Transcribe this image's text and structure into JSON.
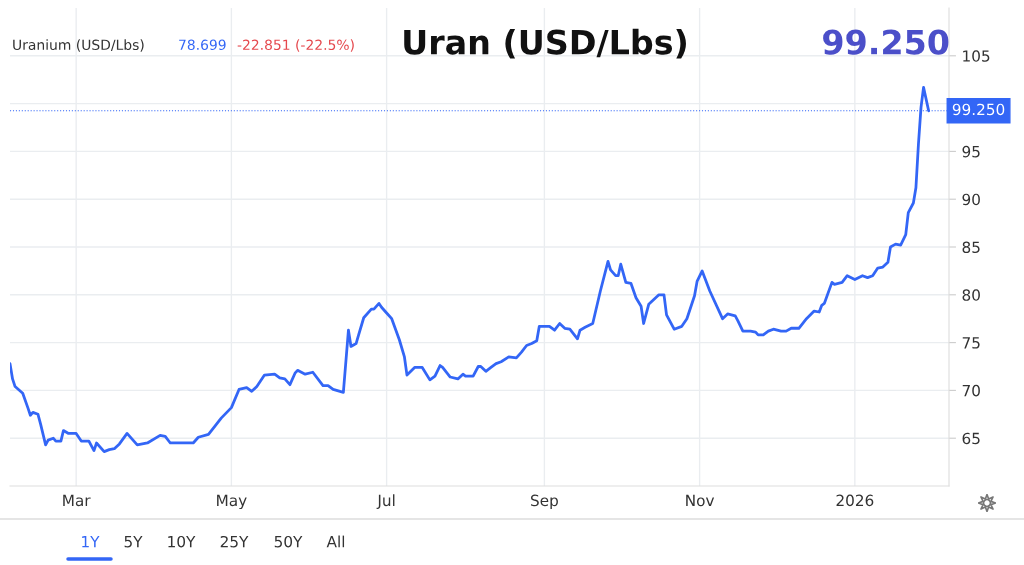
{
  "chart_data": {
    "type": "line",
    "title": "Uran (USD/Lbs)",
    "annotations": [
      "Uranium (USD/Lbs)",
      "78.699",
      "-22.851 (-22.5%)",
      "99.250",
      "1Y",
      "5Y",
      "10Y",
      "25Y",
      "50Y",
      "All"
    ],
    "x": [
      "2025-02-03",
      "2025-02-04",
      "2025-02-05",
      "2025-02-08",
      "2025-02-10",
      "2025-02-11",
      "2025-02-12",
      "2025-02-14",
      "2025-02-15",
      "2025-02-17",
      "2025-02-18",
      "2025-02-20",
      "2025-02-21",
      "2025-02-23",
      "2025-02-24",
      "2025-02-26",
      "2025-03-01",
      "2025-03-03",
      "2025-03-06",
      "2025-03-08",
      "2025-03-09",
      "2025-03-12",
      "2025-03-14",
      "2025-03-16",
      "2025-03-18",
      "2025-03-21",
      "2025-03-25",
      "2025-03-29",
      "2025-04-03",
      "2025-04-05",
      "2025-04-07",
      "2025-04-16",
      "2025-04-18",
      "2025-04-22",
      "2025-04-27",
      "2025-05-01",
      "2025-05-04",
      "2025-05-07",
      "2025-05-09",
      "2025-05-11",
      "2025-05-14",
      "2025-05-18",
      "2025-05-20",
      "2025-05-22",
      "2025-05-24",
      "2025-05-26",
      "2025-05-27",
      "2025-05-30",
      "2025-06-02",
      "2025-06-06",
      "2025-06-08",
      "2025-06-10",
      "2025-06-14",
      "2025-06-16",
      "2025-06-17",
      "2025-06-19",
      "2025-06-20",
      "2025-06-22",
      "2025-06-25",
      "2025-06-26",
      "2025-06-28",
      "2025-06-29",
      "2025-07-01",
      "2025-07-03",
      "2025-07-06",
      "2025-07-08",
      "2025-07-09",
      "2025-07-12",
      "2025-07-15",
      "2025-07-18",
      "2025-07-20",
      "2025-07-22",
      "2025-07-23",
      "2025-07-26",
      "2025-07-29",
      "2025-07-31",
      "2025-08-01",
      "2025-08-04",
      "2025-08-06",
      "2025-08-07",
      "2025-08-09",
      "2025-08-11",
      "2025-08-13",
      "2025-08-15",
      "2025-08-18",
      "2025-08-21",
      "2025-08-23",
      "2025-08-25",
      "2025-08-27",
      "2025-08-29",
      "2025-08-30",
      "2025-09-03",
      "2025-09-05",
      "2025-09-07",
      "2025-09-09",
      "2025-09-11",
      "2025-09-14",
      "2025-09-15",
      "2025-09-17",
      "2025-09-20",
      "2025-09-23",
      "2025-09-26",
      "2025-09-27",
      "2025-09-29",
      "2025-09-30",
      "2025-10-01",
      "2025-10-03",
      "2025-10-05",
      "2025-10-07",
      "2025-10-09",
      "2025-10-10",
      "2025-10-12",
      "2025-10-14",
      "2025-10-16",
      "2025-10-18",
      "2025-10-19",
      "2025-10-22",
      "2025-10-25",
      "2025-10-27",
      "2025-10-30",
      "2025-10-31",
      "2025-11-02",
      "2025-11-05",
      "2025-11-10",
      "2025-11-12",
      "2025-11-15",
      "2025-11-16",
      "2025-11-18",
      "2025-11-21",
      "2025-11-23",
      "2025-11-24",
      "2025-11-26",
      "2025-11-28",
      "2025-11-30",
      "2025-12-03",
      "2025-12-05",
      "2025-12-07",
      "2025-12-10",
      "2025-12-13",
      "2025-12-16",
      "2025-12-18",
      "2025-12-19",
      "2025-12-20",
      "2025-12-23",
      "2025-12-24",
      "2025-12-27",
      "2025-12-29",
      "2026-01-01",
      "2026-01-04",
      "2026-01-06",
      "2026-01-08",
      "2026-01-10",
      "2026-01-12",
      "2026-01-14",
      "2026-01-15",
      "2026-01-17",
      "2026-01-19",
      "2026-01-21",
      "2026-01-22",
      "2026-01-24",
      "2026-01-25",
      "2026-01-26",
      "2026-01-27",
      "2026-01-28",
      "2026-01-30"
    ],
    "series": [
      {
        "color": "#3366f6",
        "values": [
          72.8,
          71.2,
          70.4,
          69.7,
          68.2,
          67.4,
          67.7,
          67.5,
          66.5,
          64.3,
          64.8,
          65.0,
          64.7,
          64.7,
          65.8,
          65.5,
          65.5,
          64.7,
          64.7,
          63.7,
          64.5,
          63.6,
          63.8,
          63.9,
          64.4,
          65.5,
          64.3,
          64.5,
          65.3,
          65.2,
          64.5,
          64.5,
          65.1,
          65.4,
          67.1,
          68.2,
          70.1,
          70.3,
          69.9,
          70.4,
          71.6,
          71.7,
          71.3,
          71.2,
          70.6,
          71.8,
          72.1,
          71.7,
          71.9,
          70.5,
          70.5,
          70.1,
          69.8,
          76.3,
          74.6,
          74.9,
          75.8,
          77.6,
          78.5,
          78.5,
          79.1,
          78.7,
          78.1,
          77.5,
          75.3,
          73.5,
          71.6,
          72.4,
          72.4,
          71.1,
          71.5,
          72.6,
          72.4,
          71.4,
          71.2,
          71.7,
          71.5,
          71.5,
          72.5,
          72.5,
          72.0,
          72.4,
          72.8,
          73.0,
          73.5,
          73.4,
          74.0,
          74.7,
          74.9,
          75.2,
          76.7,
          76.7,
          76.3,
          77.0,
          76.5,
          76.4,
          75.4,
          76.3,
          76.6,
          77.0,
          80.4,
          83.5,
          82.6,
          82.0,
          82.0,
          83.2,
          81.3,
          81.2,
          79.7,
          78.8,
          77.0,
          79.0,
          79.5,
          80.0,
          80.0,
          77.9,
          76.4,
          76.7,
          77.5,
          79.9,
          81.4,
          82.5,
          80.4,
          77.5,
          78.0,
          77.8,
          77.3,
          76.2,
          76.2,
          76.1,
          75.8,
          75.8,
          76.2,
          76.4,
          76.2,
          76.2,
          76.5,
          76.5,
          77.5,
          78.3,
          78.2,
          78.9,
          79.1,
          81.3,
          81.1,
          81.3,
          82.0,
          81.6,
          82.0,
          81.8,
          82.0,
          82.8,
          82.9,
          83.4,
          85.0,
          85.3,
          85.2,
          86.3,
          88.6,
          89.6,
          91.2,
          95.8,
          99.6,
          101.7,
          99.25
        ]
      }
    ],
    "xlim": [
      "2025-02-03",
      "2026-02-07"
    ],
    "xticks": [
      {
        "value": "2025-03-01",
        "label": "Mar"
      },
      {
        "value": "2025-05-01",
        "label": "May"
      },
      {
        "value": "2025-07-01",
        "label": "Jul"
      },
      {
        "value": "2025-09-01",
        "label": "Sep"
      },
      {
        "value": "2025-11-01",
        "label": "Nov"
      },
      {
        "value": "2026-01-01",
        "label": "2026"
      }
    ],
    "ylim": [
      60,
      110
    ],
    "yticks": [
      65,
      70,
      75,
      80,
      85,
      90,
      95,
      {
        "value": 100,
        "label": null
      },
      105
    ],
    "ref_lines": [
      {
        "axis": "y",
        "value": 99.25,
        "label": "99.250",
        "color": "#3366f6",
        "line_style": "dotted"
      }
    ],
    "grid": true,
    "marker": "none",
    "line_style": "solid"
  }
}
